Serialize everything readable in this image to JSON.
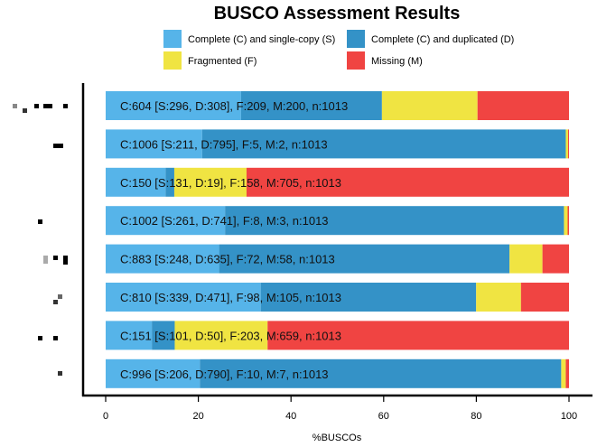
{
  "chart_data": {
    "type": "bar",
    "orientation": "horizontal-stacked-percent",
    "title": "BUSCO Assessment Results",
    "xlabel": "%BUSCOs",
    "ylabel": "",
    "xlim": [
      0,
      100
    ],
    "xticks": [
      "0",
      "20",
      "40",
      "60",
      "80",
      "100"
    ],
    "legend_placement": "top",
    "legend": [
      {
        "key": "S",
        "label": "Complete (C) and single-copy (S)",
        "color": "#56B4E9"
      },
      {
        "key": "D",
        "label": "Complete (C) and duplicated (D)",
        "color": "#3492C7"
      },
      {
        "key": "F",
        "label": "Fragmented (F)",
        "color": "#F0E442"
      },
      {
        "key": "M",
        "label": "Missing (M)",
        "color": "#F04442"
      }
    ],
    "rows": [
      {
        "S": 296,
        "D": 308,
        "F": 209,
        "M": 200,
        "n": 1013,
        "label": "C:604 [S:296, D:308], F:209, M:200, n:1013"
      },
      {
        "S": 211,
        "D": 795,
        "F": 5,
        "M": 2,
        "n": 1013,
        "label": "C:1006 [S:211, D:795], F:5, M:2, n:1013"
      },
      {
        "S": 131,
        "D": 19,
        "F": 158,
        "M": 705,
        "n": 1013,
        "label": "C:150 [S:131, D:19], F:158, M:705, n:1013"
      },
      {
        "S": 261,
        "D": 741,
        "F": 8,
        "M": 3,
        "n": 1013,
        "label": "C:1002 [S:261, D:741], F:8, M:3, n:1013"
      },
      {
        "S": 248,
        "D": 635,
        "F": 72,
        "M": 58,
        "n": 1013,
        "label": "C:883 [S:248, D:635], F:72, M:58, n:1013"
      },
      {
        "S": 339,
        "D": 471,
        "F": 98,
        "M": 105,
        "n": 1013,
        "label": "C:810 [S:339, D:471], F:98, M:105, n:1013"
      },
      {
        "S": 101,
        "D": 50,
        "F": 203,
        "M": 659,
        "n": 1013,
        "label": "C:151 [S:101, D:50], F:203, M:659, n:1013"
      },
      {
        "S": 206,
        "D": 790,
        "F": 10,
        "M": 7,
        "n": 1013,
        "label": "C:996 [S:206, D:790], F:10, M:7, n:1013"
      }
    ]
  }
}
